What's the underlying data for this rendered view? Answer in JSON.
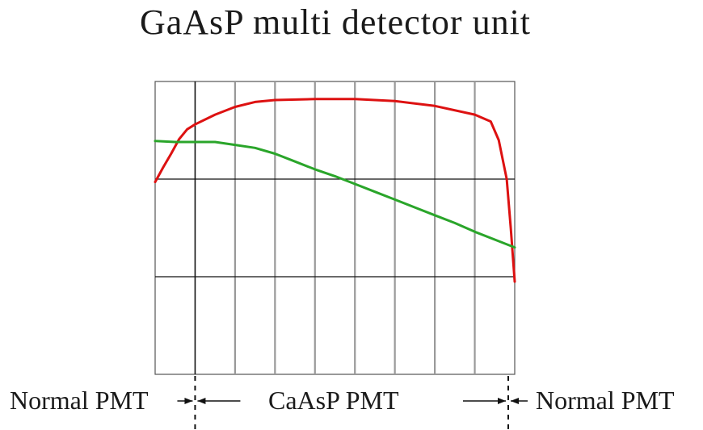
{
  "title": "GaAsP multi detector unit",
  "colors": {
    "red_series": "#dd1111",
    "green_series": "#2aa52a",
    "major_grid": "#111111",
    "minor_grid": "#999999",
    "frame": "#555555"
  },
  "regions": {
    "left": "Normal PMT",
    "middle": "CaAsP PMT",
    "right": "Normal PMT"
  },
  "chart_data": {
    "type": "line",
    "title": "GaAsP multi detector unit",
    "xlabel": "",
    "ylabel": "",
    "xlim": [
      0,
      9
    ],
    "ylim": [
      0,
      3
    ],
    "grid": true,
    "legend": "none",
    "series": [
      {
        "color": "#dd1111",
        "x": [
          0,
          0.2,
          0.4,
          0.6,
          0.8,
          1.0,
          1.5,
          2.0,
          2.5,
          3.0,
          4.0,
          5.0,
          6.0,
          7.0,
          8.0,
          8.4,
          8.6,
          8.8,
          8.9,
          9.0
        ],
        "y": [
          1.97,
          2.12,
          2.26,
          2.41,
          2.51,
          2.56,
          2.66,
          2.74,
          2.79,
          2.81,
          2.82,
          2.82,
          2.8,
          2.75,
          2.66,
          2.59,
          2.4,
          2.0,
          1.5,
          0.95
        ]
      },
      {
        "color": "#2aa52a",
        "x": [
          0,
          0.5,
          1.0,
          1.5,
          2.0,
          2.5,
          3.0,
          3.5,
          4.0,
          4.5,
          5.0,
          5.5,
          6.0,
          6.5,
          7.0,
          7.5,
          8.0,
          8.5,
          9.0
        ],
        "y": [
          2.39,
          2.38,
          2.38,
          2.38,
          2.35,
          2.32,
          2.26,
          2.18,
          2.1,
          2.03,
          1.95,
          1.87,
          1.79,
          1.71,
          1.63,
          1.55,
          1.46,
          1.38,
          1.3
        ]
      }
    ]
  }
}
